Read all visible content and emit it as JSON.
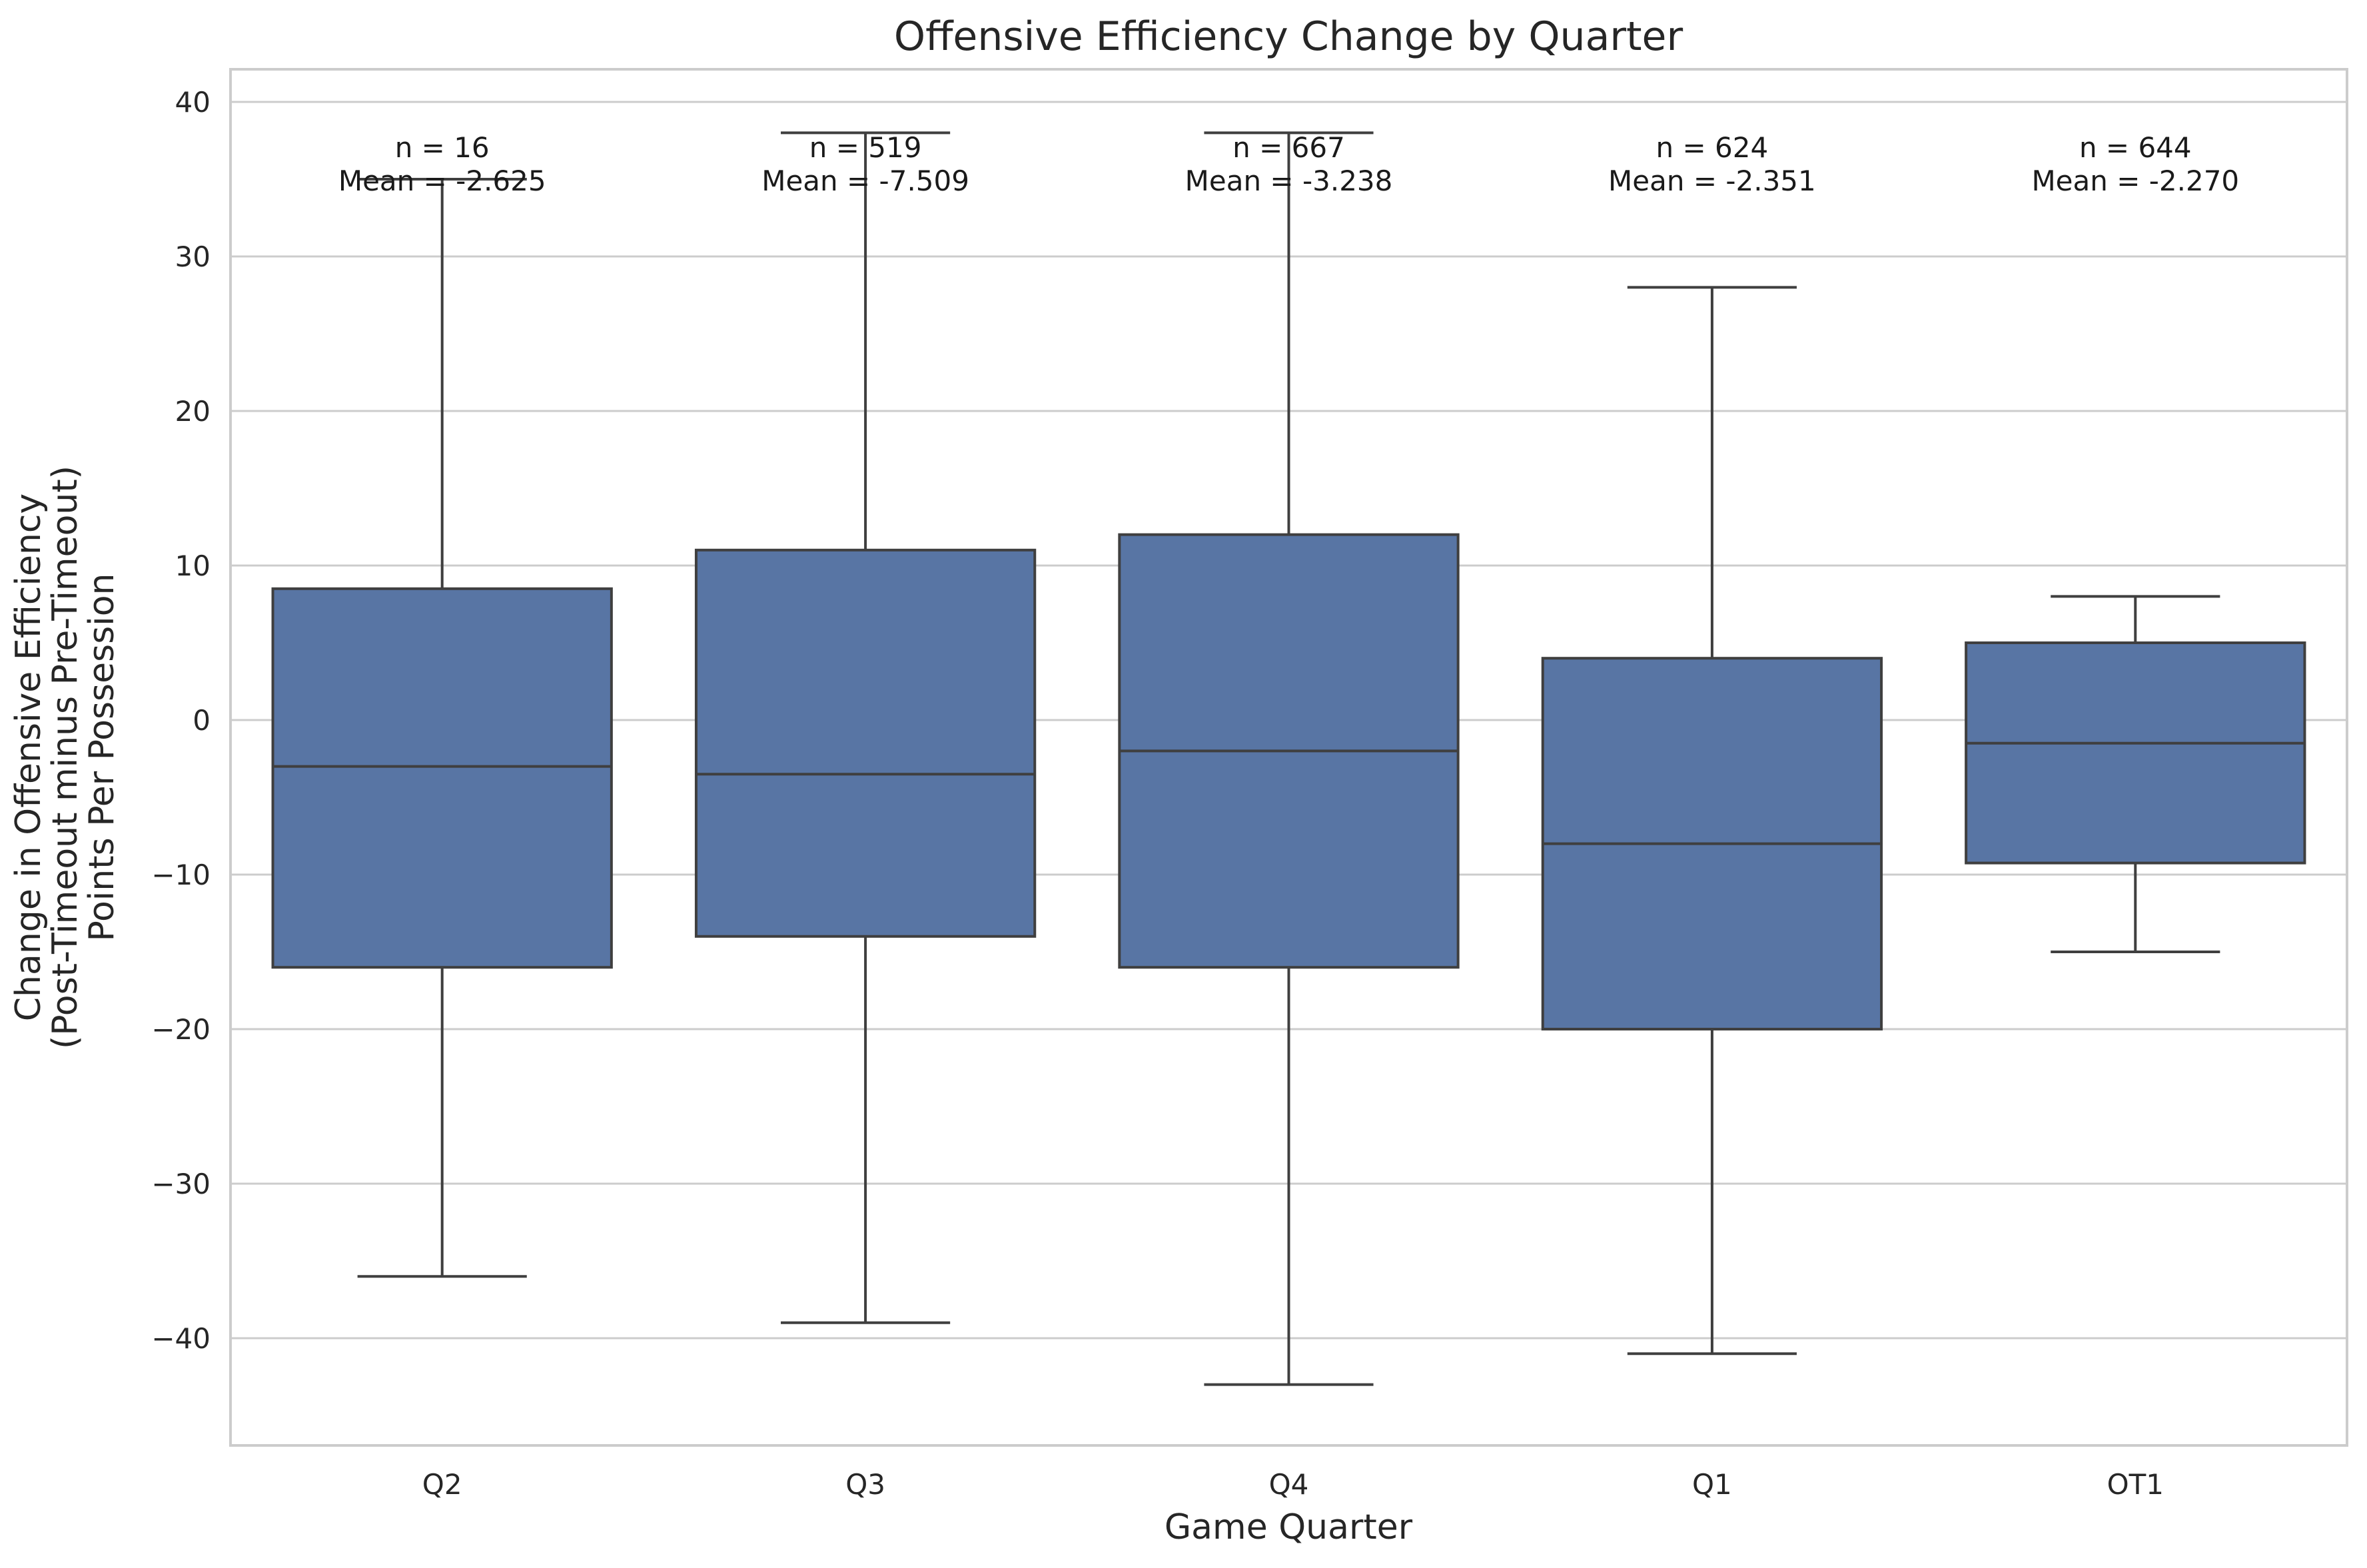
{
  "chart_data": {
    "type": "box",
    "title": "Offensive Efficiency Change by Quarter",
    "xlabel": "Game Quarter",
    "ylabel_lines": [
      "Change in Offensive Efficiency",
      "(Post-Timeout minus Pre-Timeout)",
      "Points Per Possession"
    ],
    "ylim": [
      -47,
      42
    ],
    "yticks": [
      -40,
      -30,
      -20,
      -10,
      0,
      10,
      20,
      30,
      40
    ],
    "ytick_labels": [
      "−40",
      "−30",
      "−20",
      "−10",
      "0",
      "10",
      "20",
      "30",
      "40"
    ],
    "grid": true,
    "color": "#5875a4",
    "categories": [
      "Q2",
      "Q3",
      "Q4",
      "Q1",
      "OT1"
    ],
    "boxes": [
      {
        "category": "Q2",
        "q1": -16,
        "median": -3,
        "q3": 8.5,
        "whisker_low": -36,
        "whisker_high": 35,
        "fliers": [],
        "n_label": "n = 16",
        "mean_label": "Mean = -2.625"
      },
      {
        "category": "Q3",
        "q1": -14,
        "median": -3.5,
        "q3": 11,
        "whisker_low": -39,
        "whisker_high": 38,
        "fliers": [],
        "n_label": "n = 519",
        "mean_label": "Mean = -7.509"
      },
      {
        "category": "Q4",
        "q1": -16,
        "median": -2,
        "q3": 12,
        "whisker_low": -43,
        "whisker_high": 38,
        "fliers": [],
        "n_label": "n = 667",
        "mean_label": "Mean = -3.238"
      },
      {
        "category": "Q1",
        "q1": -20,
        "median": -8,
        "q3": 4,
        "whisker_low": -41,
        "whisker_high": 28,
        "fliers": [],
        "n_label": "n = 624",
        "mean_label": "Mean = -2.351"
      },
      {
        "category": "OT1",
        "q1": -9.25,
        "median": -1.5,
        "q3": 5,
        "whisker_low": -15,
        "whisker_high": 8,
        "fliers": [],
        "n_label": "n = 644",
        "mean_label": "Mean = -2.270"
      }
    ]
  }
}
